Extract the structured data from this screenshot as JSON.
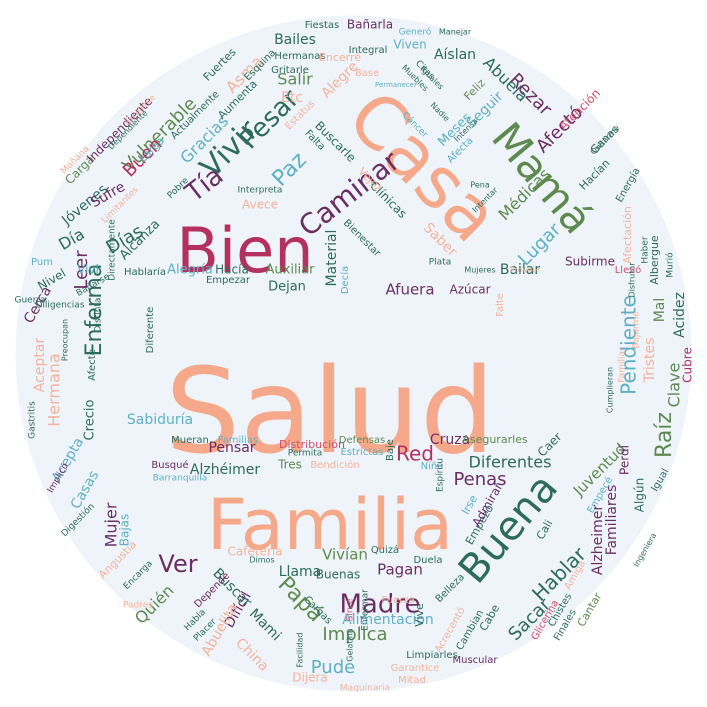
{
  "palette": {
    "salmon": "#f6a98a",
    "crimson": "#b3305f",
    "green": "#5f8a4f",
    "teal": "#2e6b5e",
    "purple": "#6b2e63",
    "blue": "#5fb0c4",
    "pink": "#d0506e",
    "lightsalmon": "#f4b39b",
    "disc": "#eef4f9"
  },
  "words": [
    {
      "text": "Salud",
      "color": "salmon"
    },
    {
      "text": "Familia",
      "color": "salmon"
    },
    {
      "text": "Casa",
      "color": "salmon"
    },
    {
      "text": "Bien",
      "color": "crimson"
    },
    {
      "text": "Mamá",
      "color": "green"
    },
    {
      "text": "Buena",
      "color": "teal"
    },
    {
      "text": "Caminar",
      "color": "purple"
    },
    {
      "text": "Vivir",
      "color": "teal"
    },
    {
      "text": "Pesar",
      "color": "teal"
    },
    {
      "text": "Paz",
      "color": "blue"
    },
    {
      "text": "Tía",
      "color": "purple"
    },
    {
      "text": "Madre",
      "color": "purple"
    },
    {
      "text": "Papá",
      "color": "green"
    },
    {
      "text": "Ver",
      "color": "purple"
    },
    {
      "text": "Enferma",
      "color": "teal"
    },
    {
      "text": "Leer",
      "color": "purple"
    },
    {
      "text": "Día",
      "color": "teal"
    },
    {
      "text": "Días",
      "color": "teal"
    },
    {
      "text": "Vulnerable",
      "color": "green"
    },
    {
      "text": "Gracias",
      "color": "blue"
    },
    {
      "text": "Buen",
      "color": "crimson"
    },
    {
      "text": "Rezar",
      "color": "purple"
    },
    {
      "text": "Afectó",
      "color": "purple"
    },
    {
      "text": "Abuela",
      "color": "teal"
    },
    {
      "text": "Pendiente",
      "color": "blue"
    },
    {
      "text": "Raíz",
      "color": "green"
    },
    {
      "text": "Clave",
      "color": "green"
    },
    {
      "text": "Hablar",
      "color": "teal"
    },
    {
      "text": "Sacar",
      "color": "teal"
    },
    {
      "text": "Implica",
      "color": "green"
    },
    {
      "text": "Pude",
      "color": "blue"
    },
    {
      "text": "Penas",
      "color": "purple"
    },
    {
      "text": "Red",
      "color": "crimson"
    },
    {
      "text": "Diferentes",
      "color": "teal"
    },
    {
      "text": "Lugar",
      "color": "blue"
    },
    {
      "text": "Médicas",
      "color": "green"
    },
    {
      "text": "Salir",
      "color": "green"
    },
    {
      "text": "Afuera",
      "color": "purple"
    },
    {
      "text": "Material",
      "color": "teal"
    },
    {
      "text": "Mujer",
      "color": "purple"
    },
    {
      "text": "Hermana",
      "color": "lightsalmon"
    },
    {
      "text": "Cerca",
      "color": "purple"
    },
    {
      "text": "Quién",
      "color": "green"
    },
    {
      "text": "Difícil",
      "color": "purple"
    },
    {
      "text": "Abuelita",
      "color": "lightsalmon"
    },
    {
      "text": "Mami",
      "color": "teal"
    },
    {
      "text": "China",
      "color": "lightsalmon"
    },
    {
      "text": "Vivían",
      "color": "green"
    },
    {
      "text": "Pagan",
      "color": "purple"
    },
    {
      "text": "Llama",
      "color": "teal"
    },
    {
      "text": "Buscar",
      "color": "teal"
    },
    {
      "text": "Alimentación",
      "color": "blue"
    },
    {
      "text": "Juventud",
      "color": "green"
    },
    {
      "text": "Alzheimer",
      "color": "purple"
    },
    {
      "text": "Familiares",
      "color": "purple"
    },
    {
      "text": "Sabiduría",
      "color": "blue"
    },
    {
      "text": "Alzhéimer",
      "color": "teal"
    },
    {
      "text": "Pensar",
      "color": "purple"
    },
    {
      "text": "Cruza",
      "color": "purple"
    },
    {
      "text": "Bailar",
      "color": "teal"
    },
    {
      "text": "Subirme",
      "color": "purple"
    },
    {
      "text": "Acidez",
      "color": "teal"
    },
    {
      "text": "Tristes",
      "color": "lightsalmon"
    },
    {
      "text": "Mal",
      "color": "green"
    },
    {
      "text": "Cubre",
      "color": "crimson"
    },
    {
      "text": "Azúcar",
      "color": "purple"
    },
    {
      "text": "Auxiliar",
      "color": "green"
    },
    {
      "text": "Dejan",
      "color": "teal"
    },
    {
      "text": "Hacía",
      "color": "teal"
    },
    {
      "text": "Alegría",
      "color": "blue"
    },
    {
      "text": "Alcanza",
      "color": "teal"
    },
    {
      "text": "Jóvenes",
      "color": "teal"
    },
    {
      "text": "Sufre",
      "color": "purple"
    },
    {
      "text": "Nivel",
      "color": "teal"
    },
    {
      "text": "Acepta",
      "color": "blue"
    },
    {
      "text": "Casas",
      "color": "blue"
    },
    {
      "text": "Bajas",
      "color": "blue"
    },
    {
      "text": "Crecio",
      "color": "teal"
    },
    {
      "text": "Bailes",
      "color": "teal"
    },
    {
      "text": "Asma",
      "color": "lightsalmon"
    },
    {
      "text": "Etc",
      "color": "lightsalmon"
    },
    {
      "text": "Alegre",
      "color": "lightsalmon"
    },
    {
      "text": "Seguir",
      "color": "blue"
    },
    {
      "text": "Meses",
      "color": "blue"
    },
    {
      "text": "Aíslan",
      "color": "teal"
    },
    {
      "text": "Viven",
      "color": "blue"
    },
    {
      "text": "Bañarla",
      "color": "purple"
    },
    {
      "text": "Fiestas",
      "color": "teal"
    },
    {
      "text": "Hermanas",
      "color": "teal"
    },
    {
      "text": "Gritarle",
      "color": "teal"
    },
    {
      "text": "Integral",
      "color": "teal"
    },
    {
      "text": "Actualmente",
      "color": "teal"
    },
    {
      "text": "Buscarle",
      "color": "teal"
    },
    {
      "text": "Falta",
      "color": "teal"
    },
    {
      "text": "Bienestar",
      "color": "teal"
    },
    {
      "text": "Clínicas",
      "color": "teal"
    },
    {
      "text": "Vejez",
      "color": "lightsalmon"
    },
    {
      "text": "Saber",
      "color": "lightsalmon"
    },
    {
      "text": "Aceptar",
      "color": "lightsalmon"
    },
    {
      "text": "Vivi",
      "color": "blue"
    },
    {
      "text": "Guerra",
      "color": "teal"
    },
    {
      "text": "Pum",
      "color": "blue"
    },
    {
      "text": "Bañarse",
      "color": "teal"
    },
    {
      "text": "Distinta",
      "color": "teal"
    },
    {
      "text": "Hablaría",
      "color": "teal"
    },
    {
      "text": "Empezar",
      "color": "teal"
    },
    {
      "text": "Decía",
      "color": "blue"
    },
    {
      "text": "Avece",
      "color": "lightsalmon"
    },
    {
      "text": "Interpreta",
      "color": "teal"
    },
    {
      "text": "Mueran",
      "color": "teal"
    },
    {
      "text": "Familias",
      "color": "blue"
    },
    {
      "text": "Distribución",
      "color": "pink"
    },
    {
      "text": "Defensas",
      "color": "green"
    },
    {
      "text": "Estrictas",
      "color": "blue"
    },
    {
      "text": "Asegurarles",
      "color": "green"
    },
    {
      "text": "Tres",
      "color": "green"
    },
    {
      "text": "Bendición",
      "color": "lightsalmon"
    },
    {
      "text": "Permita",
      "color": "teal"
    },
    {
      "text": "Niña",
      "color": "blue"
    },
    {
      "text": "Caer",
      "color": "teal"
    },
    {
      "text": "Perdí",
      "color": "purple"
    },
    {
      "text": "Algún",
      "color": "teal"
    },
    {
      "text": "Igual",
      "color": "teal"
    },
    {
      "text": "Busqué",
      "color": "purple"
    },
    {
      "text": "Barranquilla",
      "color": "blue"
    },
    {
      "text": "Cafetería",
      "color": "lightsalmon"
    },
    {
      "text": "Quizá",
      "color": "teal"
    },
    {
      "text": "Duela",
      "color": "teal"
    },
    {
      "text": "Buenas",
      "color": "teal"
    },
    {
      "text": "Cargas",
      "color": "teal"
    },
    {
      "text": "Fuerza",
      "color": "lightsalmon"
    },
    {
      "text": "Vive",
      "color": "teal"
    },
    {
      "text": "Acrecentó",
      "color": "lightsalmon"
    },
    {
      "text": "Cambian",
      "color": "teal"
    },
    {
      "text": "Cabe",
      "color": "teal"
    },
    {
      "text": "Cali",
      "color": "teal"
    },
    {
      "text": "Chistes",
      "color": "teal"
    },
    {
      "text": "Finales",
      "color": "teal"
    },
    {
      "text": "Cantar",
      "color": "green"
    },
    {
      "text": "Amiga",
      "color": "lightsalmon"
    },
    {
      "text": "Glicerina",
      "color": "pink"
    },
    {
      "text": "Muscular",
      "color": "purple"
    },
    {
      "text": "Limpiarles",
      "color": "teal"
    },
    {
      "text": "Garantice",
      "color": "lightsalmon"
    },
    {
      "text": "Mitad",
      "color": "lightsalmon"
    },
    {
      "text": "Dijera",
      "color": "lightsalmon"
    },
    {
      "text": "Maquinaria",
      "color": "lightsalmon"
    },
    {
      "text": "Depende",
      "color": "purple"
    },
    {
      "text": "Habla",
      "color": "teal"
    },
    {
      "text": "Placer",
      "color": "teal"
    },
    {
      "text": "Encarga",
      "color": "teal"
    },
    {
      "text": "Angustia",
      "color": "lightsalmon"
    },
    {
      "text": "Digestión",
      "color": "teal"
    },
    {
      "text": "Implicó",
      "color": "purple"
    },
    {
      "text": "Gastritis",
      "color": "teal"
    },
    {
      "text": "Carga",
      "color": "green"
    },
    {
      "text": "Independiente",
      "color": "purple"
    },
    {
      "text": "Larga",
      "color": "blue"
    },
    {
      "text": "Aumenta",
      "color": "teal"
    },
    {
      "text": "Esquina",
      "color": "teal"
    },
    {
      "text": "Fuertes",
      "color": "teal"
    },
    {
      "text": "Encerré",
      "color": "lightsalmon"
    },
    {
      "text": "Base",
      "color": "lightsalmon"
    },
    {
      "text": "Generó",
      "color": "blue"
    },
    {
      "text": "Manejar",
      "color": "teal"
    },
    {
      "text": "Citas",
      "color": "teal"
    },
    {
      "text": "Muebles",
      "color": "teal"
    },
    {
      "text": "Iguales",
      "color": "teal"
    },
    {
      "text": "Nadie",
      "color": "teal"
    },
    {
      "text": "Cáncer",
      "color": "blue"
    },
    {
      "text": "Feliz",
      "color": "green"
    },
    {
      "text": "Intensa",
      "color": "teal"
    },
    {
      "text": "Afecta",
      "color": "blue"
    },
    {
      "text": "Pena",
      "color": "teal"
    },
    {
      "text": "Intentar",
      "color": "teal"
    },
    {
      "text": "Atención",
      "color": "pink"
    },
    {
      "text": "Ganas",
      "color": "teal"
    },
    {
      "text": "Hacían",
      "color": "teal"
    },
    {
      "text": "Energía",
      "color": "teal"
    },
    {
      "text": "Albergue",
      "color": "teal"
    },
    {
      "text": "Afectación",
      "color": "lightsalmon"
    },
    {
      "text": "Disfrutar",
      "color": "teal"
    },
    {
      "text": "Haber",
      "color": "teal"
    },
    {
      "text": "Llevó",
      "color": "pink"
    },
    {
      "text": "Murió",
      "color": "teal"
    },
    {
      "text": "Proveer",
      "color": "lightsalmon"
    },
    {
      "text": "Falte",
      "color": "lightsalmon"
    },
    {
      "text": "Bajarme",
      "color": "lightsalmon"
    },
    {
      "text": "Familiar",
      "color": "lightsalmon"
    },
    {
      "text": "Cumplieran",
      "color": "teal"
    },
    {
      "text": "Diligencias",
      "color": "teal"
    },
    {
      "text": "Preocupan",
      "color": "teal"
    },
    {
      "text": "Afecte",
      "color": "teal"
    },
    {
      "text": "Diferente",
      "color": "teal"
    },
    {
      "text": "Directamente",
      "color": "teal"
    },
    {
      "text": "Limitantes",
      "color": "lightsalmon"
    },
    {
      "text": "Pobre",
      "color": "teal"
    },
    {
      "text": "Mañana",
      "color": "lightsalmon"
    },
    {
      "text": "Dependiente",
      "color": "teal"
    },
    {
      "text": "Excelente",
      "color": "lightsalmon"
    },
    {
      "text": "Permanecer",
      "color": "blue"
    },
    {
      "text": "Estatus",
      "color": "lightsalmon"
    },
    {
      "text": "Baje",
      "color": "teal"
    },
    {
      "text": "Enfermar",
      "color": "teal"
    },
    {
      "text": "Sirve",
      "color": "pink"
    },
    {
      "text": "Gelatina",
      "color": "teal"
    },
    {
      "text": "Padres",
      "color": "lightsalmon"
    },
    {
      "text": "Facilidad",
      "color": "teal"
    },
    {
      "text": "Belleza",
      "color": "teal"
    },
    {
      "text": "Espíritu",
      "color": "teal"
    },
    {
      "text": "Empezó",
      "color": "teal"
    },
    {
      "text": "Admirar",
      "color": "purple"
    },
    {
      "text": "Irse",
      "color": "blue"
    },
    {
      "text": "Empecé",
      "color": "blue"
    },
    {
      "text": "Dimos",
      "color": "teal"
    },
    {
      "text": "Ingeniera",
      "color": "teal"
    },
    {
      "text": "Plata",
      "color": "teal"
    },
    {
      "text": "Quitarme",
      "color": "teal"
    },
    {
      "text": "Mujeres",
      "color": "teal"
    }
  ]
}
